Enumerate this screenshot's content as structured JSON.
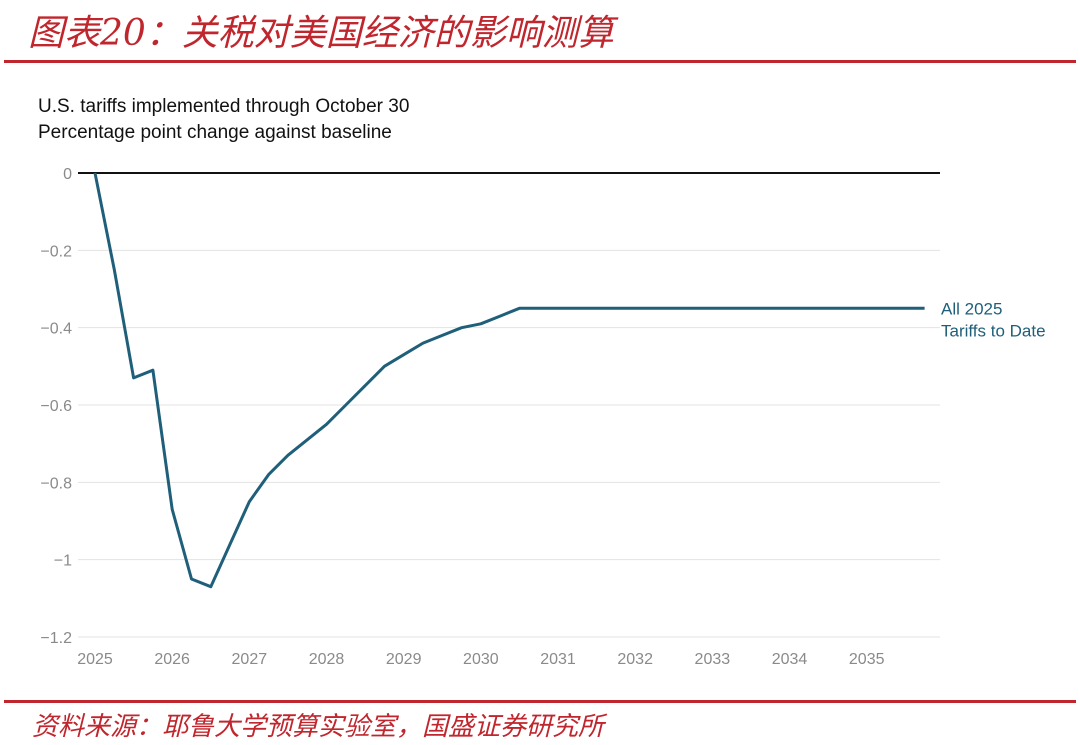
{
  "figure": {
    "title": "图表20：关税对美国经济的影响测算",
    "source": "资料来源：耶鲁大学预算实验室，国盛证券研究所"
  },
  "colors": {
    "accent": "#c0262d",
    "series": "#1f5f7a",
    "grid": "#e3e3e3",
    "zero_line": "#111111"
  },
  "chart_data": {
    "type": "line",
    "title": "U.S. tariffs implemented through October 30",
    "subtitle": "Percentage point change against baseline",
    "xlabel": "",
    "ylabel": "",
    "xlim": [
      2025,
      2035.95
    ],
    "ylim": [
      -1.2,
      0
    ],
    "x_ticks": [
      2025,
      2026,
      2027,
      2028,
      2029,
      2030,
      2031,
      2032,
      2033,
      2034,
      2035
    ],
    "x_tick_labels": [
      "2025",
      "2026",
      "2027",
      "2028",
      "2029",
      "2030",
      "2031",
      "2032",
      "2033",
      "2034",
      "2035"
    ],
    "y_ticks": [
      0,
      -0.2,
      -0.4,
      -0.6,
      -0.8,
      -1,
      -1.2
    ],
    "y_tick_labels": [
      "0",
      "−0.2",
      "−0.4",
      "−0.6",
      "−0.8",
      "−1",
      "−1.2"
    ],
    "grid": "horizontal",
    "legend": "end-of-line label",
    "series": [
      {
        "name": "All 2025 Tariffs to Date",
        "name_lines": [
          "All 2025",
          "Tariffs to Date"
        ],
        "x": [
          2025.0,
          2025.25,
          2025.5,
          2025.75,
          2026.0,
          2026.25,
          2026.5,
          2026.75,
          2027.0,
          2027.25,
          2027.5,
          2027.75,
          2028.0,
          2028.25,
          2028.5,
          2028.75,
          2029.0,
          2029.25,
          2029.5,
          2029.75,
          2030.0,
          2030.25,
          2030.5,
          2030.75,
          2031.0,
          2032.0,
          2033.0,
          2034.0,
          2035.0,
          2035.75
        ],
        "y": [
          0.0,
          -0.25,
          -0.53,
          -0.51,
          -0.87,
          -1.05,
          -1.07,
          -0.96,
          -0.85,
          -0.78,
          -0.73,
          -0.69,
          -0.65,
          -0.6,
          -0.55,
          -0.5,
          -0.47,
          -0.44,
          -0.42,
          -0.4,
          -0.39,
          -0.37,
          -0.35,
          -0.35,
          -0.35,
          -0.35,
          -0.35,
          -0.35,
          -0.35,
          -0.35
        ]
      }
    ]
  }
}
